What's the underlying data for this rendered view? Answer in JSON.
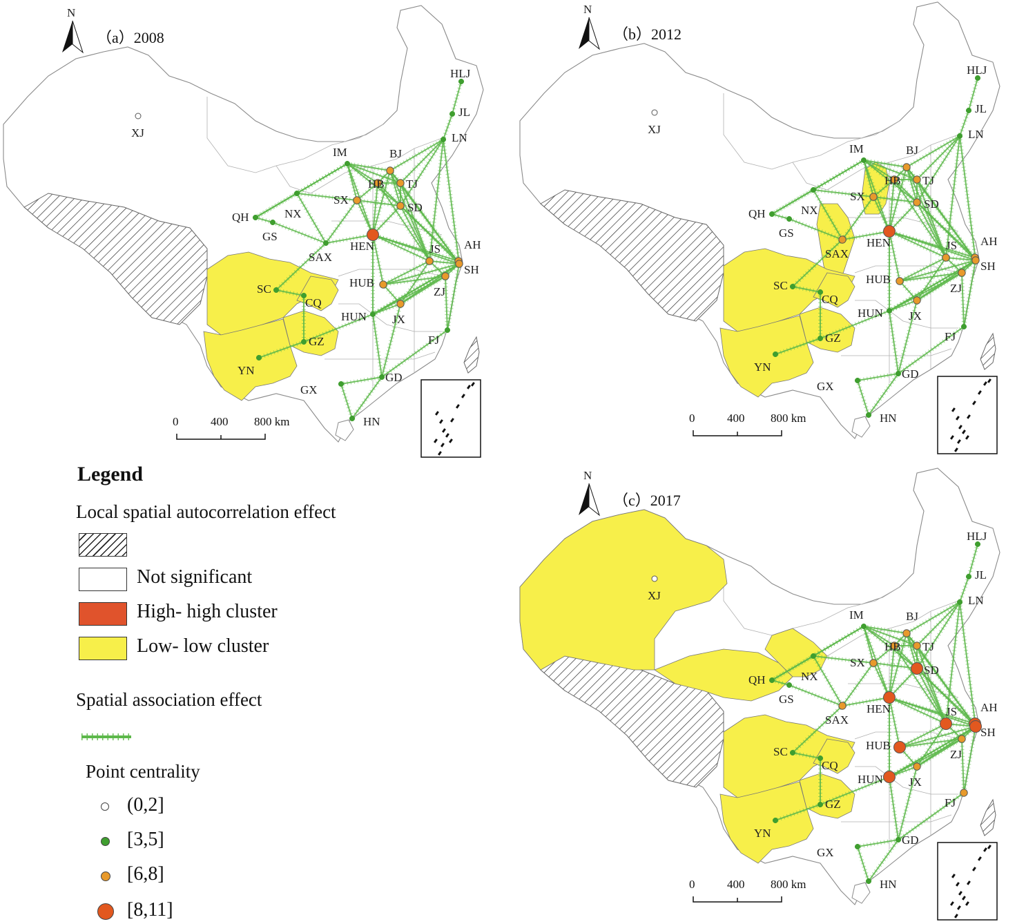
{
  "panels": [
    {
      "id": "a",
      "title": "（a）2008",
      "north": "N",
      "scale": {
        "ticks": [
          "0",
          "400",
          "800 km"
        ]
      },
      "lowlow_regions": [
        "SC",
        "CQ",
        "GZ",
        "YN"
      ],
      "highhigh_regions": [],
      "nodes": {
        "XJ": "(0,2]",
        "HLJ": "[3,5]",
        "JL": "[3,5]",
        "LN": "[3,5]",
        "IM": "[3,5]",
        "BJ": "[6,8]",
        "TJ": "[6,8]",
        "HB": "[6,8]",
        "SX": "[6,8]",
        "SD": "[6,8]",
        "QH": "[3,5]",
        "NX": "[3,5]",
        "GS": "[3,5]",
        "SAX": "[3,5]",
        "HEN": "[8,11]",
        "JS": "[6,8]",
        "AH": "[6,8]",
        "SH": "[6,8]",
        "HUB": "[6,8]",
        "ZJ": "[6,8]",
        "SC": "[3,5]",
        "CQ": "[3,5]",
        "HUN": "[3,5]",
        "JX": "[6,8]",
        "GZ": "[3,5]",
        "YN": "[3,5]",
        "FJ": "[3,5]",
        "GD": "[3,5]",
        "GX": "[3,5]",
        "HN": "[3,5]"
      }
    },
    {
      "id": "b",
      "title": "（b）2012",
      "north": "N",
      "scale": {
        "ticks": [
          "0",
          "400",
          "800 km"
        ]
      },
      "lowlow_regions": [
        "SX",
        "SAX",
        "SC",
        "CQ",
        "GZ",
        "YN"
      ],
      "highhigh_regions": [],
      "nodes": {
        "XJ": "(0,2]",
        "HLJ": "[3,5]",
        "JL": "[3,5]",
        "LN": "[3,5]",
        "IM": "[3,5]",
        "BJ": "[6,8]",
        "TJ": "[6,8]",
        "HB": "[6,8]",
        "SX": "[6,8]",
        "SD": "[6,8]",
        "QH": "[3,5]",
        "NX": "[3,5]",
        "GS": "[3,5]",
        "SAX": "[6,8]",
        "HEN": "[8,11]",
        "JS": "[6,8]",
        "AH": "[6,8]",
        "SH": "[6,8]",
        "HUB": "[6,8]",
        "ZJ": "[6,8]",
        "SC": "[3,5]",
        "CQ": "[3,5]",
        "HUN": "[3,5]",
        "JX": "[6,8]",
        "GZ": "[3,5]",
        "YN": "[3,5]",
        "FJ": "[3,5]",
        "GD": "[3,5]",
        "GX": "[3,5]",
        "HN": "[3,5]"
      }
    },
    {
      "id": "c",
      "title": "（c）2017",
      "north": "N",
      "scale": {
        "ticks": [
          "0",
          "400",
          "800 km"
        ]
      },
      "lowlow_regions": [
        "XJ",
        "QH",
        "GS",
        "SC",
        "CQ",
        "GZ",
        "YN"
      ],
      "highhigh_regions": [],
      "nodes": {
        "XJ": "(0,2]",
        "HLJ": "[3,5]",
        "JL": "[3,5]",
        "LN": "[3,5]",
        "IM": "[3,5]",
        "BJ": "[6,8]",
        "TJ": "[6,8]",
        "HB": "[6,8]",
        "SX": "[6,8]",
        "SD": "[8,11]",
        "QH": "[3,5]",
        "NX": "[3,5]",
        "GS": "[3,5]",
        "SAX": "[6,8]",
        "HEN": "[8,11]",
        "JS": "[8,11]",
        "AH": "[8,11]",
        "SH": "[8,11]",
        "HUB": "[8,11]",
        "ZJ": "[6,8]",
        "SC": "[3,5]",
        "CQ": "[3,5]",
        "HUN": "[8,11]",
        "JX": "[6,8]",
        "GZ": "[3,5]",
        "YN": "[3,5]",
        "FJ": "[6,8]",
        "GD": "[3,5]",
        "GX": "[3,5]",
        "HN": "[3,5]"
      }
    }
  ],
  "province_labels": {
    "XJ": "XJ",
    "HLJ": "HLJ",
    "JL": "JL",
    "LN": "LN",
    "IM": "IM",
    "BJ": "BJ",
    "TJ": "TJ",
    "HB": "HB",
    "SX": "SX",
    "SD": "SD",
    "QH": "QH",
    "NX": "NX",
    "GS": "GS",
    "SAX": "SAX",
    "HEN": "HEN",
    "JS": "JS",
    "AH": "AH",
    "SH": "SH",
    "HUB": "HUB",
    "ZJ": "ZJ",
    "SC": "SC",
    "CQ": "CQ",
    "HUN": "HUN",
    "JX": "JX",
    "GZ": "GZ",
    "YN": "YN",
    "FJ": "FJ",
    "GD": "GD",
    "GX": "GX",
    "HN": "HN"
  },
  "legend": {
    "title": "Legend",
    "autocorr_heading": "Local spatial autocorrelation effect",
    "autocorr_items": [
      {
        "key": "hatched",
        "label": ""
      },
      {
        "key": "none",
        "label": "Not significant"
      },
      {
        "key": "hh",
        "label": "High- high cluster"
      },
      {
        "key": "ll",
        "label": "Low- low cluster"
      }
    ],
    "association_heading": "Spatial  association effect",
    "centrality_heading": "Point centrality",
    "centrality_items": [
      "(0,2]",
      "[3,5]",
      "[6,8]",
      "[8,11]"
    ]
  },
  "colors": {
    "lowlow": "#f7ef4a",
    "highhigh": "#e0532c",
    "link": "#5cb84a",
    "node_small": "#ffffff",
    "node_green": "#3f9e2f",
    "node_orange": "#e89a2b",
    "node_red": "#e2581f"
  }
}
